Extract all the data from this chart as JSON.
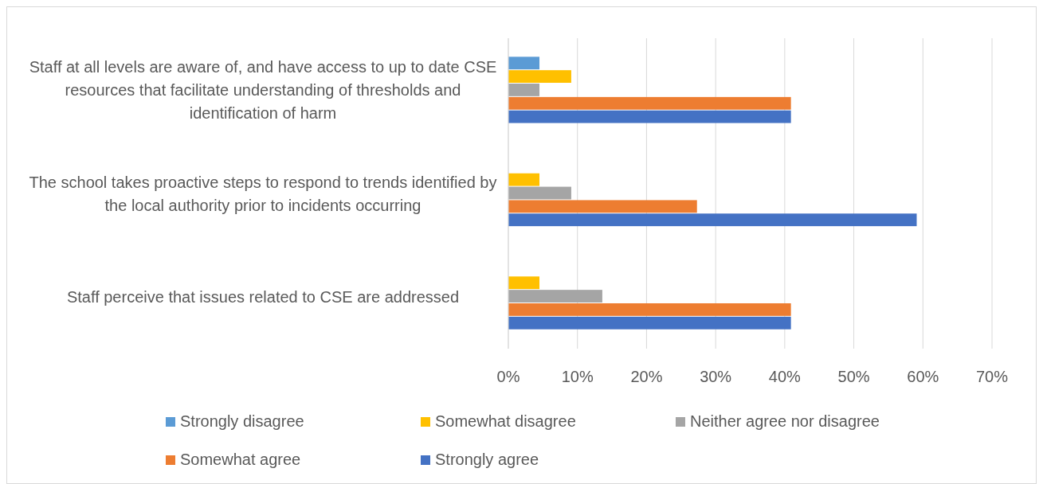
{
  "chart_data": {
    "type": "bar",
    "orientation": "horizontal",
    "categories": [
      "Staff at all levels are aware of, and have access to up to date CSE resources that facilitate understanding of thresholds and identification of harm",
      "The school takes proactive steps to respond to trends identified by the local authority prior to incidents occurring",
      "Staff perceive that issues related to CSE are addressed"
    ],
    "series": [
      {
        "name": "Strongly disagree",
        "color": "#5b9bd5",
        "values": [
          4.5,
          null,
          null
        ]
      },
      {
        "name": "Somewhat disagree",
        "color": "#ffc000",
        "values": [
          9.1,
          4.5,
          4.5
        ]
      },
      {
        "name": "Neither agree nor disagree",
        "color": "#a5a5a5",
        "values": [
          4.5,
          9.1,
          13.6
        ]
      },
      {
        "name": "Somewhat agree",
        "color": "#ed7d31",
        "values": [
          40.9,
          27.3,
          40.9
        ]
      },
      {
        "name": "Strongly agree",
        "color": "#4472c4",
        "values": [
          40.9,
          59.1,
          40.9
        ]
      }
    ],
    "xlim": [
      0,
      70
    ],
    "xticks": [
      {
        "value": 0,
        "label": "0%"
      },
      {
        "value": 10,
        "label": "10%"
      },
      {
        "value": 20,
        "label": "20%"
      },
      {
        "value": 30,
        "label": "30%"
      },
      {
        "value": 40,
        "label": "40%"
      },
      {
        "value": 50,
        "label": "50%"
      },
      {
        "value": 60,
        "label": "60%"
      },
      {
        "value": 70,
        "label": "70%"
      }
    ],
    "grid": "x",
    "legend": "bottom"
  }
}
